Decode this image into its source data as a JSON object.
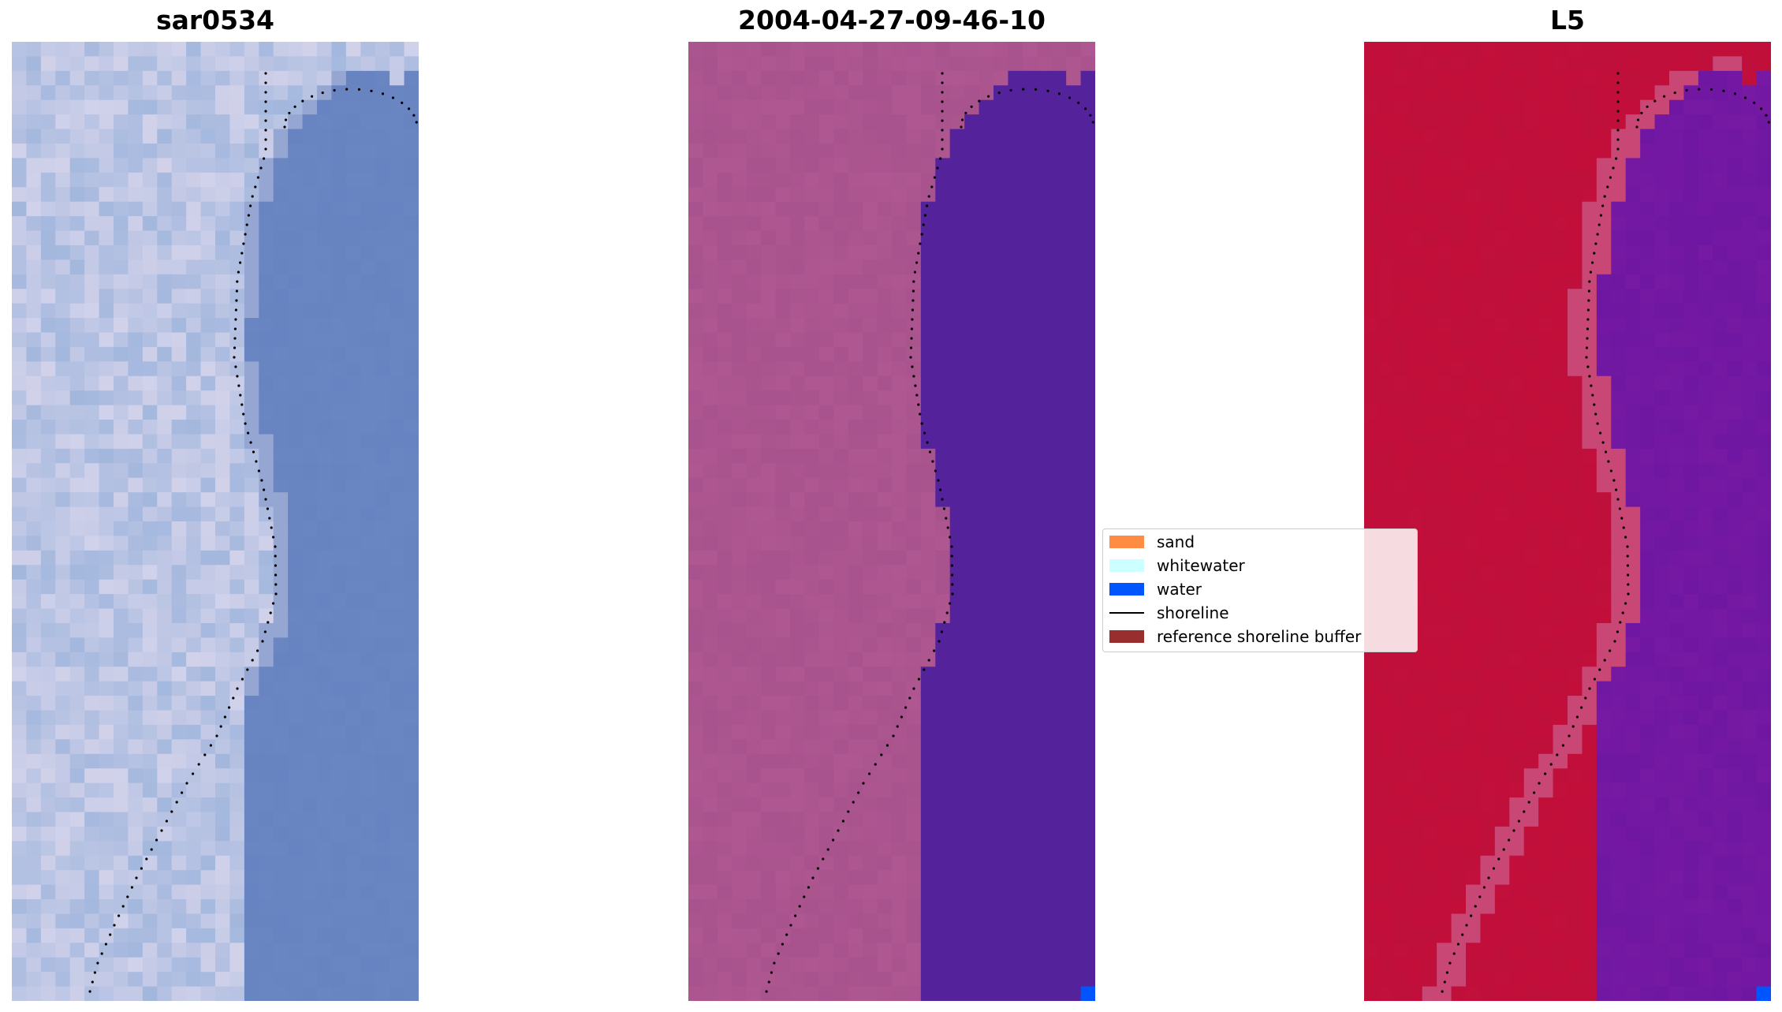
{
  "panels": [
    {
      "title": "sar0534",
      "mode": "rgb"
    },
    {
      "title": "2004-04-27-09-46-10",
      "mode": "classified"
    },
    {
      "title": "L5",
      "mode": "index"
    }
  ],
  "legend": {
    "items": [
      {
        "label": "sand",
        "color": "#ff8c42",
        "kind": "patch"
      },
      {
        "label": "whitewater",
        "color": "#ccffff",
        "kind": "patch"
      },
      {
        "label": "water",
        "color": "#0055ff",
        "kind": "patch"
      },
      {
        "label": "shoreline",
        "color": "#000000",
        "kind": "line"
      },
      {
        "label": "reference shoreline buffer",
        "color": "#992e2e",
        "kind": "patch"
      }
    ]
  },
  "colors": {
    "rgb_water": "#6a86c2",
    "rgb_land": "#d9d6ec",
    "classified_water": "#54229a",
    "classified_land": "#a44f8c",
    "index_land": "#c20e3a",
    "index_water": "#7619a3"
  }
}
